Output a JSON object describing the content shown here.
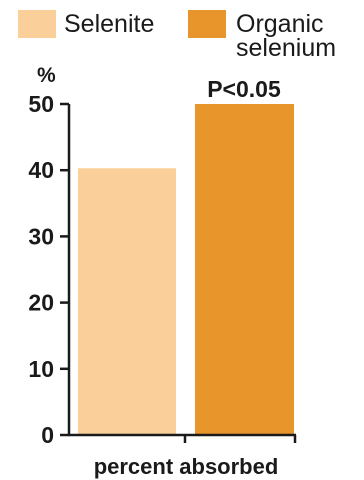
{
  "chart_data": {
    "type": "bar",
    "categories": [
      "percent absorbed"
    ],
    "series": [
      {
        "name": "Selenite",
        "values": [
          40.3
        ],
        "color": "#fbcf9a"
      },
      {
        "name": "Organic selenium",
        "values": [
          50
        ],
        "color": "#e8952b"
      }
    ],
    "legend_lines": [
      [
        "Selenite"
      ],
      [
        "Organic",
        "selenium"
      ]
    ],
    "xlabel": "percent absorbed",
    "ylabel": "%",
    "ylim": [
      0,
      50
    ],
    "yticks": [
      "0",
      "10",
      "20",
      "30",
      "40",
      "50"
    ],
    "annotation": "P<0.05",
    "legend_position": "top",
    "grid": false
  }
}
